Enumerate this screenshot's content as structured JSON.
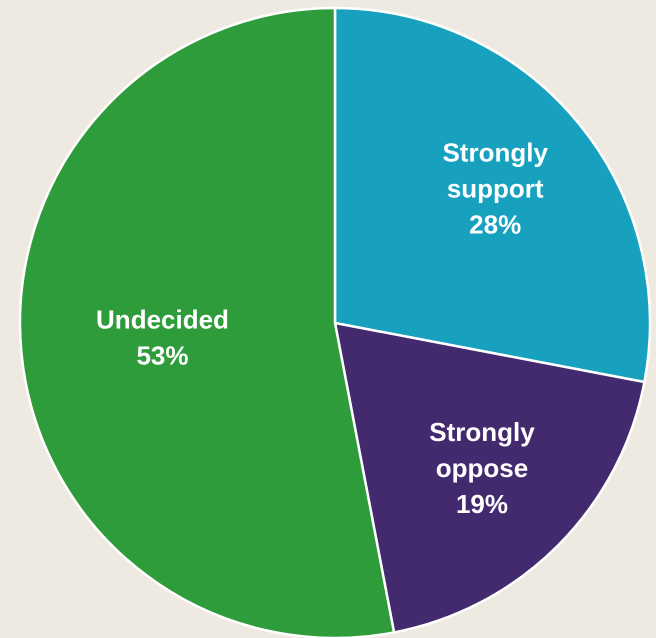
{
  "chart_data": {
    "type": "pie",
    "title": "",
    "slices": [
      {
        "label": [
          "Strongly",
          "support"
        ],
        "value": 28,
        "value_text": "28%",
        "color": "#17A1BF"
      },
      {
        "label": [
          "Strongly",
          "oppose"
        ],
        "value": 19,
        "value_text": "19%",
        "color": "#432A6E"
      },
      {
        "label": [
          "Undecided"
        ],
        "value": 53,
        "value_text": "53%",
        "color": "#2E9C3A"
      }
    ],
    "start_angle_deg": 0,
    "direction": "clockwise",
    "legend": "none",
    "slice_border_color": "#FFFFFF"
  }
}
